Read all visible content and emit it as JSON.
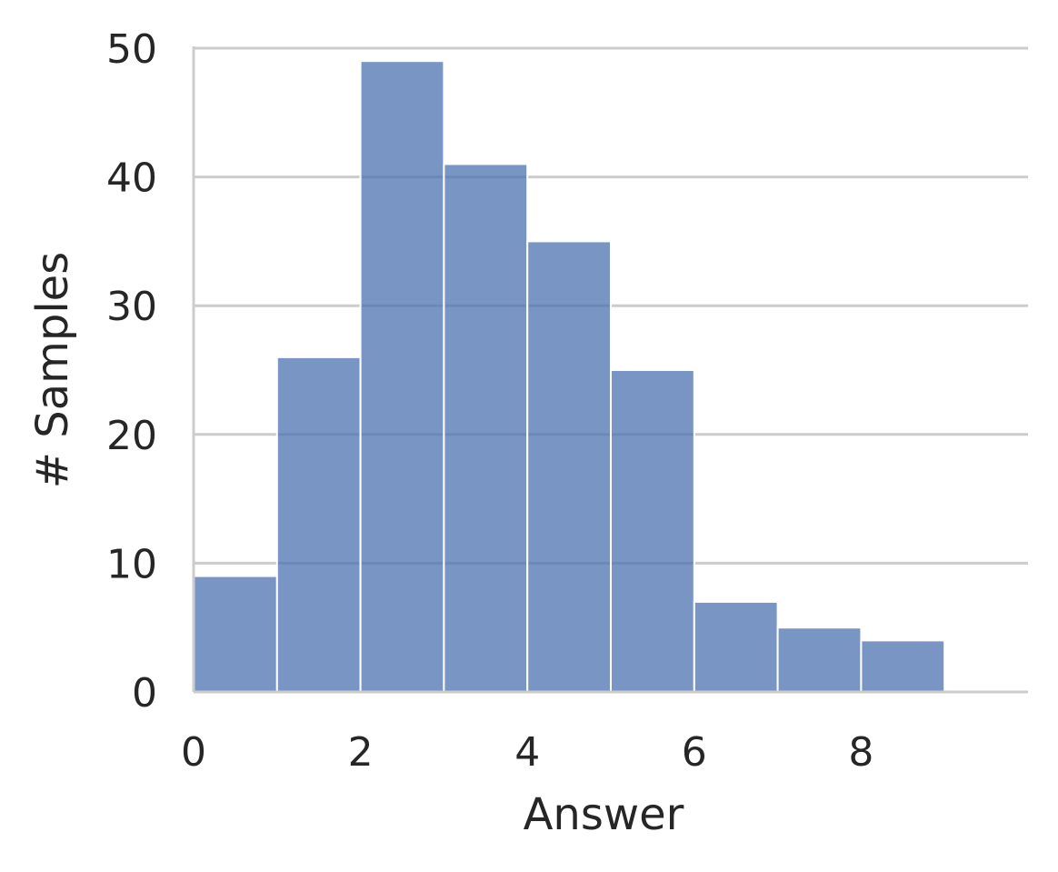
{
  "chart_data": {
    "type": "bar",
    "title": "",
    "xlabel": "Answer",
    "ylabel": "# Samples",
    "bins": [
      {
        "x0": 0,
        "x1": 1,
        "count": 9
      },
      {
        "x0": 1,
        "x1": 2,
        "count": 26
      },
      {
        "x0": 2,
        "x1": 3,
        "count": 49
      },
      {
        "x0": 3,
        "x1": 4,
        "count": 41
      },
      {
        "x0": 4,
        "x1": 5,
        "count": 35
      },
      {
        "x0": 5,
        "x1": 6,
        "count": 25
      },
      {
        "x0": 6,
        "x1": 7,
        "count": 7
      },
      {
        "x0": 7,
        "x1": 8,
        "count": 5
      },
      {
        "x0": 8,
        "x1": 9,
        "count": 4
      }
    ],
    "xlim": [
      0,
      10
    ],
    "ylim": [
      0,
      50
    ],
    "xticks": [
      "0",
      "2",
      "4",
      "6",
      "8"
    ],
    "yticks": [
      "0",
      "10",
      "20",
      "30",
      "40",
      "50"
    ],
    "grid": "horizontal",
    "bar_color": "#4c72b0",
    "bar_opacity": 0.75
  }
}
